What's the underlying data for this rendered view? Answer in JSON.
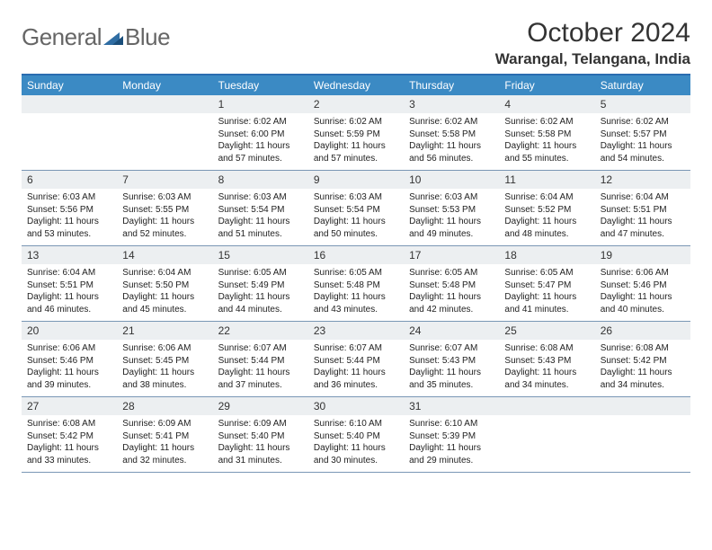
{
  "brand": {
    "part1": "General",
    "part2": "Blue"
  },
  "title": "October 2024",
  "subtitle": "Warangal, Telangana, India",
  "colors": {
    "header_bar": "#3b8ac4",
    "header_border_top": "#2a6cb0",
    "row_divider": "#7a97b5",
    "daynum_bg": "#eceff1",
    "brand_gray": "#666666",
    "brand_blue": "#2f6da3",
    "text": "#222222"
  },
  "dow": [
    "Sunday",
    "Monday",
    "Tuesday",
    "Wednesday",
    "Thursday",
    "Friday",
    "Saturday"
  ],
  "weeks": [
    [
      null,
      null,
      {
        "n": "1",
        "sr": "Sunrise: 6:02 AM",
        "ss": "Sunset: 6:00 PM",
        "dl": "Daylight: 11 hours and 57 minutes."
      },
      {
        "n": "2",
        "sr": "Sunrise: 6:02 AM",
        "ss": "Sunset: 5:59 PM",
        "dl": "Daylight: 11 hours and 57 minutes."
      },
      {
        "n": "3",
        "sr": "Sunrise: 6:02 AM",
        "ss": "Sunset: 5:58 PM",
        "dl": "Daylight: 11 hours and 56 minutes."
      },
      {
        "n": "4",
        "sr": "Sunrise: 6:02 AM",
        "ss": "Sunset: 5:58 PM",
        "dl": "Daylight: 11 hours and 55 minutes."
      },
      {
        "n": "5",
        "sr": "Sunrise: 6:02 AM",
        "ss": "Sunset: 5:57 PM",
        "dl": "Daylight: 11 hours and 54 minutes."
      }
    ],
    [
      {
        "n": "6",
        "sr": "Sunrise: 6:03 AM",
        "ss": "Sunset: 5:56 PM",
        "dl": "Daylight: 11 hours and 53 minutes."
      },
      {
        "n": "7",
        "sr": "Sunrise: 6:03 AM",
        "ss": "Sunset: 5:55 PM",
        "dl": "Daylight: 11 hours and 52 minutes."
      },
      {
        "n": "8",
        "sr": "Sunrise: 6:03 AM",
        "ss": "Sunset: 5:54 PM",
        "dl": "Daylight: 11 hours and 51 minutes."
      },
      {
        "n": "9",
        "sr": "Sunrise: 6:03 AM",
        "ss": "Sunset: 5:54 PM",
        "dl": "Daylight: 11 hours and 50 minutes."
      },
      {
        "n": "10",
        "sr": "Sunrise: 6:03 AM",
        "ss": "Sunset: 5:53 PM",
        "dl": "Daylight: 11 hours and 49 minutes."
      },
      {
        "n": "11",
        "sr": "Sunrise: 6:04 AM",
        "ss": "Sunset: 5:52 PM",
        "dl": "Daylight: 11 hours and 48 minutes."
      },
      {
        "n": "12",
        "sr": "Sunrise: 6:04 AM",
        "ss": "Sunset: 5:51 PM",
        "dl": "Daylight: 11 hours and 47 minutes."
      }
    ],
    [
      {
        "n": "13",
        "sr": "Sunrise: 6:04 AM",
        "ss": "Sunset: 5:51 PM",
        "dl": "Daylight: 11 hours and 46 minutes."
      },
      {
        "n": "14",
        "sr": "Sunrise: 6:04 AM",
        "ss": "Sunset: 5:50 PM",
        "dl": "Daylight: 11 hours and 45 minutes."
      },
      {
        "n": "15",
        "sr": "Sunrise: 6:05 AM",
        "ss": "Sunset: 5:49 PM",
        "dl": "Daylight: 11 hours and 44 minutes."
      },
      {
        "n": "16",
        "sr": "Sunrise: 6:05 AM",
        "ss": "Sunset: 5:48 PM",
        "dl": "Daylight: 11 hours and 43 minutes."
      },
      {
        "n": "17",
        "sr": "Sunrise: 6:05 AM",
        "ss": "Sunset: 5:48 PM",
        "dl": "Daylight: 11 hours and 42 minutes."
      },
      {
        "n": "18",
        "sr": "Sunrise: 6:05 AM",
        "ss": "Sunset: 5:47 PM",
        "dl": "Daylight: 11 hours and 41 minutes."
      },
      {
        "n": "19",
        "sr": "Sunrise: 6:06 AM",
        "ss": "Sunset: 5:46 PM",
        "dl": "Daylight: 11 hours and 40 minutes."
      }
    ],
    [
      {
        "n": "20",
        "sr": "Sunrise: 6:06 AM",
        "ss": "Sunset: 5:46 PM",
        "dl": "Daylight: 11 hours and 39 minutes."
      },
      {
        "n": "21",
        "sr": "Sunrise: 6:06 AM",
        "ss": "Sunset: 5:45 PM",
        "dl": "Daylight: 11 hours and 38 minutes."
      },
      {
        "n": "22",
        "sr": "Sunrise: 6:07 AM",
        "ss": "Sunset: 5:44 PM",
        "dl": "Daylight: 11 hours and 37 minutes."
      },
      {
        "n": "23",
        "sr": "Sunrise: 6:07 AM",
        "ss": "Sunset: 5:44 PM",
        "dl": "Daylight: 11 hours and 36 minutes."
      },
      {
        "n": "24",
        "sr": "Sunrise: 6:07 AM",
        "ss": "Sunset: 5:43 PM",
        "dl": "Daylight: 11 hours and 35 minutes."
      },
      {
        "n": "25",
        "sr": "Sunrise: 6:08 AM",
        "ss": "Sunset: 5:43 PM",
        "dl": "Daylight: 11 hours and 34 minutes."
      },
      {
        "n": "26",
        "sr": "Sunrise: 6:08 AM",
        "ss": "Sunset: 5:42 PM",
        "dl": "Daylight: 11 hours and 34 minutes."
      }
    ],
    [
      {
        "n": "27",
        "sr": "Sunrise: 6:08 AM",
        "ss": "Sunset: 5:42 PM",
        "dl": "Daylight: 11 hours and 33 minutes."
      },
      {
        "n": "28",
        "sr": "Sunrise: 6:09 AM",
        "ss": "Sunset: 5:41 PM",
        "dl": "Daylight: 11 hours and 32 minutes."
      },
      {
        "n": "29",
        "sr": "Sunrise: 6:09 AM",
        "ss": "Sunset: 5:40 PM",
        "dl": "Daylight: 11 hours and 31 minutes."
      },
      {
        "n": "30",
        "sr": "Sunrise: 6:10 AM",
        "ss": "Sunset: 5:40 PM",
        "dl": "Daylight: 11 hours and 30 minutes."
      },
      {
        "n": "31",
        "sr": "Sunrise: 6:10 AM",
        "ss": "Sunset: 5:39 PM",
        "dl": "Daylight: 11 hours and 29 minutes."
      },
      null,
      null
    ]
  ]
}
